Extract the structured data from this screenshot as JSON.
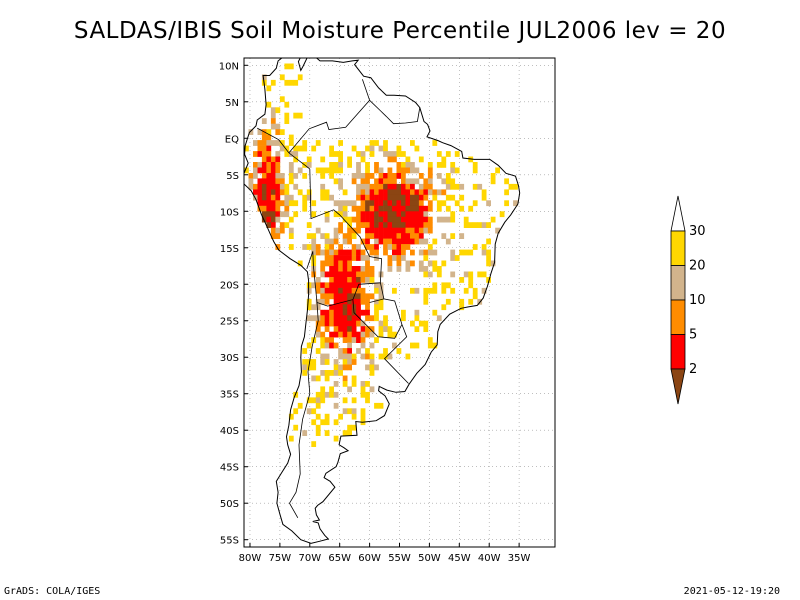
{
  "title": "SALDAS/IBIS Soil Moisture Percentile JUL2006 lev = 20",
  "map": {
    "lat_range": [
      -56,
      11
    ],
    "lon_range": [
      -81,
      -29
    ],
    "lat_ticks": [
      {
        "value": 10,
        "label": "10N"
      },
      {
        "value": 5,
        "label": "5N"
      },
      {
        "value": 0,
        "label": "EQ"
      },
      {
        "value": -5,
        "label": "5S"
      },
      {
        "value": -10,
        "label": "10S"
      },
      {
        "value": -15,
        "label": "15S"
      },
      {
        "value": -20,
        "label": "20S"
      },
      {
        "value": -25,
        "label": "25S"
      },
      {
        "value": -30,
        "label": "30S"
      },
      {
        "value": -35,
        "label": "35S"
      },
      {
        "value": -40,
        "label": "40S"
      },
      {
        "value": -45,
        "label": "45S"
      },
      {
        "value": -50,
        "label": "50S"
      },
      {
        "value": -55,
        "label": "55S"
      }
    ],
    "lon_ticks": [
      {
        "value": -80,
        "label": "80W"
      },
      {
        "value": -75,
        "label": "75W"
      },
      {
        "value": -70,
        "label": "70W"
      },
      {
        "value": -65,
        "label": "65W"
      },
      {
        "value": -60,
        "label": "60W"
      },
      {
        "value": -55,
        "label": "55W"
      },
      {
        "value": -50,
        "label": "50W"
      },
      {
        "value": -45,
        "label": "45W"
      },
      {
        "value": -40,
        "label": "40W"
      },
      {
        "value": -35,
        "label": "35W"
      }
    ],
    "grid": true,
    "colors": {
      "coast": "#000000",
      "grid": "#999999"
    }
  },
  "colorbar": {
    "levels": [
      "2",
      "5",
      "10",
      "20",
      "30"
    ],
    "colors": [
      "#8b4513",
      "#ff0000",
      "#ff8c00",
      "#d2b48c",
      "#ffd700",
      "#ffffff"
    ]
  },
  "footer": {
    "left": "GrADS: COLA/IGES",
    "right": "2021-05-12-19:20"
  }
}
